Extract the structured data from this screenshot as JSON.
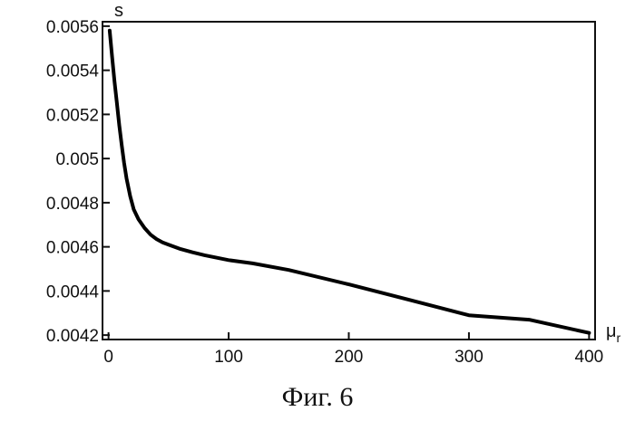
{
  "chart_data": {
    "type": "line",
    "title": "",
    "ylabel": "s",
    "xlabel_main": "μ",
    "xlabel_sub": "r",
    "caption": "Фиг. 6",
    "xlim": [
      -5,
      405
    ],
    "ylim": [
      0.00418,
      0.00562
    ],
    "grid": false,
    "x_ticks": [
      {
        "value": 0,
        "label": "0"
      },
      {
        "value": 100,
        "label": "100"
      },
      {
        "value": 200,
        "label": "200"
      },
      {
        "value": 300,
        "label": "300"
      },
      {
        "value": 400,
        "label": "400"
      }
    ],
    "y_ticks": [
      {
        "value": 0.0042,
        "label": "0.0042"
      },
      {
        "value": 0.0044,
        "label": "0.0044"
      },
      {
        "value": 0.0046,
        "label": "0.0046"
      },
      {
        "value": 0.0048,
        "label": "0.0048"
      },
      {
        "value": 0.005,
        "label": "0.005"
      },
      {
        "value": 0.0052,
        "label": "0.0052"
      },
      {
        "value": 0.0054,
        "label": "0.0054"
      },
      {
        "value": 0.0056,
        "label": "0.0056"
      }
    ],
    "series": [
      {
        "color": "#000000",
        "x": [
          1,
          3,
          5,
          7,
          9,
          11,
          13,
          15,
          18,
          21,
          25,
          30,
          35,
          40,
          45,
          50,
          60,
          70,
          80,
          100,
          120,
          150,
          200,
          250,
          300,
          350,
          400
        ],
        "y": [
          0.00558,
          0.00546,
          0.00535,
          0.00525,
          0.00515,
          0.00506,
          0.00498,
          0.00491,
          0.00483,
          0.00477,
          0.004725,
          0.004685,
          0.004655,
          0.004635,
          0.00462,
          0.00461,
          0.00459,
          0.004575,
          0.004562,
          0.00454,
          0.004525,
          0.004495,
          0.00443,
          0.00436,
          0.00429,
          0.00427,
          0.00421
        ]
      }
    ]
  }
}
